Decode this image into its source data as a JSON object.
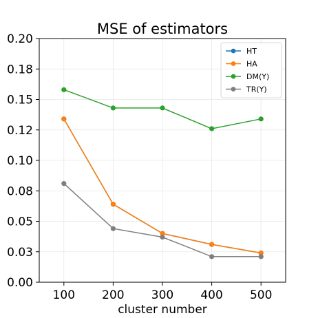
{
  "chart_data": {
    "type": "line",
    "title": "MSE of estimators",
    "xlabel": "cluster number",
    "ylabel": "",
    "x": [
      100,
      200,
      300,
      400,
      500
    ],
    "xticks": [
      "100",
      "200",
      "300",
      "400",
      "500"
    ],
    "xlim": [
      50,
      550
    ],
    "ylim": [
      0.0,
      0.2
    ],
    "yticks": [
      0.0,
      0.025,
      0.05,
      0.075,
      0.1,
      0.125,
      0.15,
      0.175,
      0.2
    ],
    "ytick_labels": [
      "0.00",
      "0.03",
      "0.05",
      "0.08",
      "0.10",
      "0.12",
      "0.15",
      "0.18",
      "0.20"
    ],
    "grid": true,
    "legend_position": "top-right",
    "series": [
      {
        "name": "HT",
        "color": "#1f77b4",
        "values": [
          0.134,
          0.064,
          0.04,
          0.031,
          0.024
        ]
      },
      {
        "name": "HA",
        "color": "#ff7f0e",
        "values": [
          0.134,
          0.064,
          0.04,
          0.031,
          0.024
        ]
      },
      {
        "name": "DM(Y)",
        "color": "#2ca02c",
        "values": [
          0.158,
          0.143,
          0.143,
          0.126,
          0.134
        ]
      },
      {
        "name": "TR(Y)",
        "color": "#7f7f7f",
        "values": [
          0.081,
          0.044,
          0.037,
          0.021,
          0.021
        ]
      }
    ]
  }
}
